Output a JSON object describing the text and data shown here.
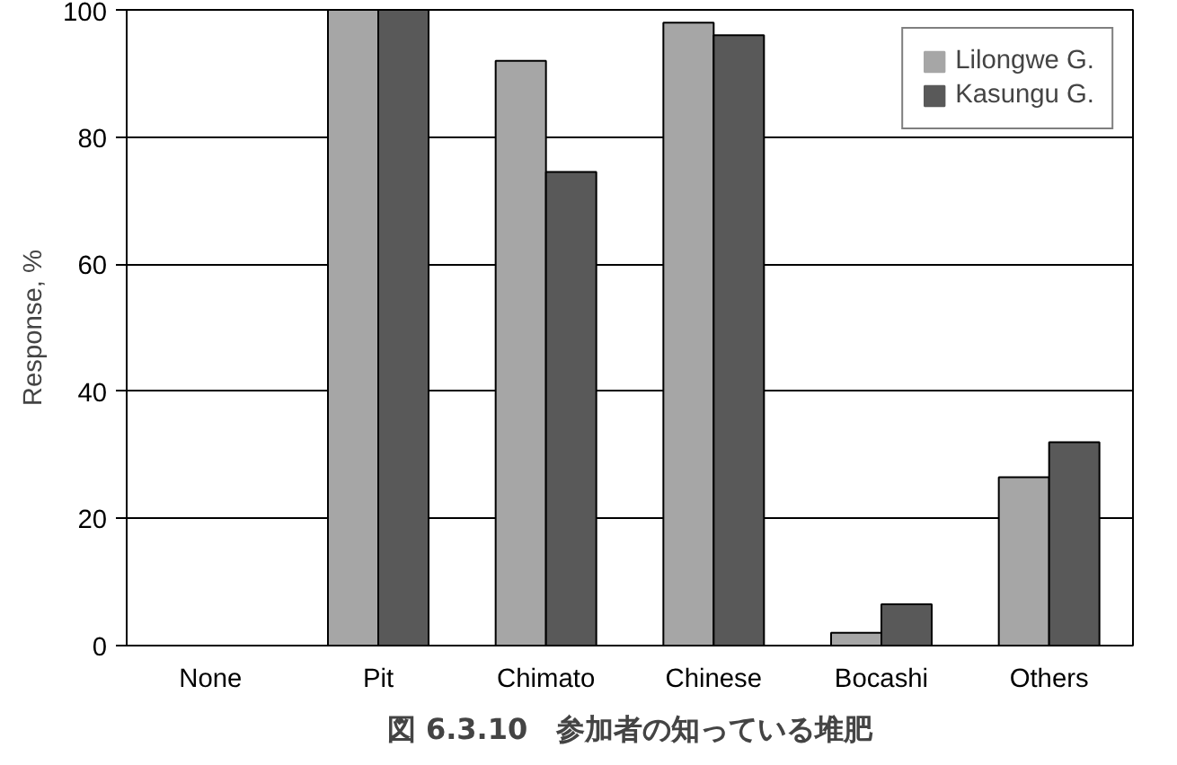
{
  "chart_data": {
    "type": "bar",
    "title": "図 6.3.10　参加者の知っている堆肥",
    "ylabel": "Response, %",
    "categories": [
      "None",
      "Pit",
      "Chimato",
      "Chinese",
      "Bocashi",
      "Others"
    ],
    "series": [
      {
        "name": "Lilongwe G.",
        "color": "#a6a6a6",
        "values": [
          0,
          100,
          92,
          98,
          2,
          26.5
        ]
      },
      {
        "name": "Kasungu G.",
        "color": "#595959",
        "values": [
          0,
          100,
          74.5,
          96,
          6.5,
          32
        ]
      }
    ],
    "ylim": [
      0,
      100
    ],
    "yticks": [
      0,
      20,
      40,
      60,
      80,
      100
    ],
    "grid": "y",
    "legend": "top right"
  }
}
